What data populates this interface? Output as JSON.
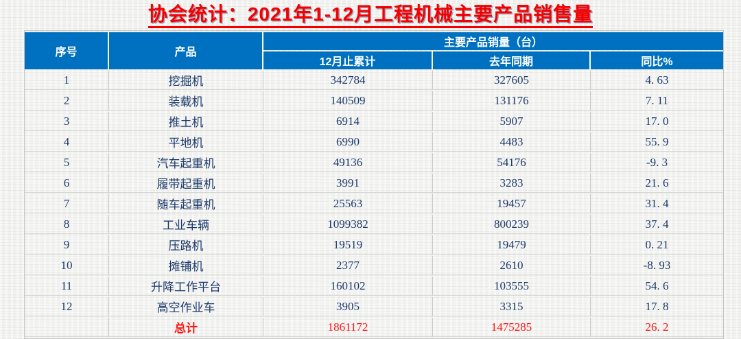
{
  "title": {
    "text": "协会统计：2021年1-12月工程机械主要产品销售量"
  },
  "colors": {
    "header_blue": "#0070C0",
    "title_red": "#F50000",
    "total_red": "#FB1414",
    "body_text_navy": "#1B3A6B",
    "page_background": "#F2F2F0"
  },
  "table": {
    "columns": {
      "index": "序号",
      "product": "产品",
      "group": "主要产品销量（台）",
      "sub": [
        "12月止累计",
        "去年同期",
        "同比%"
      ]
    },
    "rows": [
      {
        "no": "1",
        "product": "挖掘机",
        "cum": "342784",
        "prev": "327605",
        "yoy": "4. 63"
      },
      {
        "no": "2",
        "product": "装载机",
        "cum": "140509",
        "prev": "131176",
        "yoy": "7. 11"
      },
      {
        "no": "3",
        "product": "推土机",
        "cum": "6914",
        "prev": "5907",
        "yoy": "17. 0"
      },
      {
        "no": "4",
        "product": "平地机",
        "cum": "6990",
        "prev": "4483",
        "yoy": "55. 9"
      },
      {
        "no": "5",
        "product": "汽车起重机",
        "cum": "49136",
        "prev": "54176",
        "yoy": "-9. 3"
      },
      {
        "no": "6",
        "product": "履带起重机",
        "cum": "3991",
        "prev": "3283",
        "yoy": "21. 6"
      },
      {
        "no": "7",
        "product": "随车起重机",
        "cum": "25563",
        "prev": "19457",
        "yoy": "31. 4"
      },
      {
        "no": "8",
        "product": "工业车辆",
        "cum": "1099382",
        "prev": "800239",
        "yoy": "37. 4"
      },
      {
        "no": "9",
        "product": "压路机",
        "cum": "19519",
        "prev": "19479",
        "yoy": "0. 21"
      },
      {
        "no": "10",
        "product": "摊铺机",
        "cum": "2377",
        "prev": "2610",
        "yoy": "-8. 93"
      },
      {
        "no": "11",
        "product": "升降工作平台",
        "cum": "160102",
        "prev": "103555",
        "yoy": "54. 6"
      },
      {
        "no": "12",
        "product": "高空作业车",
        "cum": "3905",
        "prev": "3315",
        "yoy": "17. 8"
      }
    ],
    "total_row": {
      "no": "",
      "product": "总计",
      "cum": "1861172",
      "prev": "1475285",
      "yoy": "26. 2"
    }
  }
}
